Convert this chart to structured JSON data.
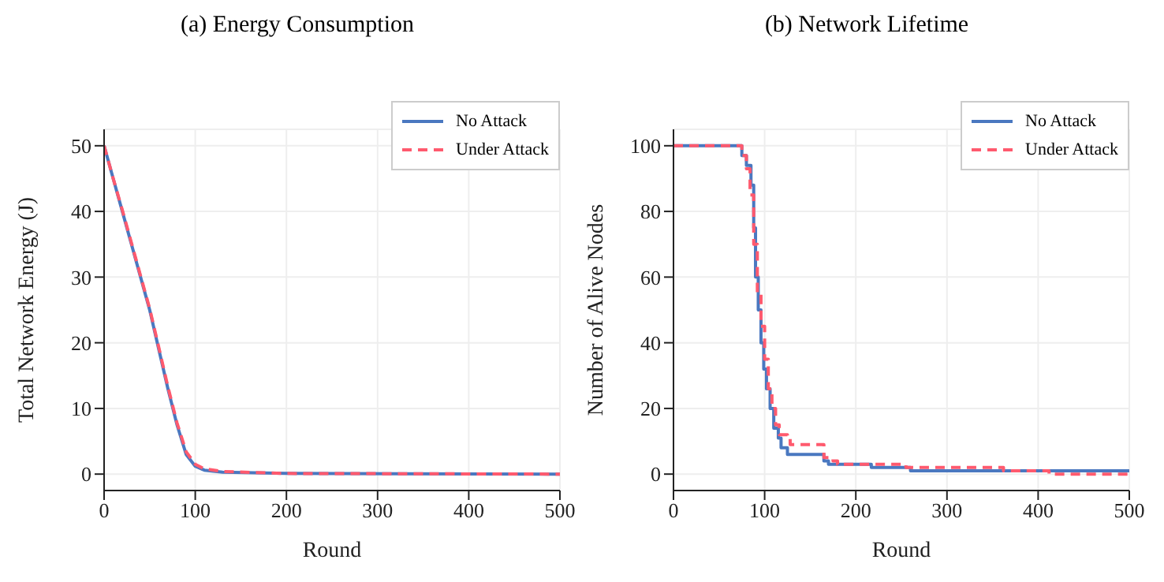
{
  "chart_data": [
    {
      "type": "line",
      "title": "(a) Energy Consumption",
      "xlabel": "Round",
      "ylabel": "Total Network Energy (J)",
      "xlim": [
        0,
        500
      ],
      "ylim": [
        -2.5,
        52.5
      ],
      "xticks": [
        0,
        100,
        200,
        300,
        400,
        500
      ],
      "yticks": [
        0,
        10,
        20,
        30,
        40,
        50
      ],
      "grid": true,
      "legend": "top right",
      "series": [
        {
          "name": "No Attack",
          "color": "#4a78c0",
          "line_style": "solid",
          "x": [
            0,
            10,
            20,
            30,
            40,
            50,
            60,
            70,
            80,
            90,
            100,
            110,
            130,
            200,
            500
          ],
          "values": [
            50,
            45,
            40,
            35,
            30,
            25,
            19,
            13,
            7.5,
            3,
            1.2,
            0.6,
            0.3,
            0.1,
            0
          ]
        },
        {
          "name": "Under Attack",
          "color": "#ff5a6e",
          "line_style": "dashed",
          "x": [
            0,
            10,
            20,
            30,
            40,
            50,
            60,
            70,
            80,
            90,
            100,
            110,
            130,
            200,
            500
          ],
          "values": [
            50,
            45,
            40.2,
            35.2,
            30.2,
            25.2,
            19.3,
            13.3,
            7.8,
            3.4,
            1.5,
            0.8,
            0.4,
            0.1,
            0
          ]
        }
      ]
    },
    {
      "type": "step",
      "title": "(b) Network Lifetime",
      "xlabel": "Round",
      "ylabel": "Number of Alive Nodes",
      "xlim": [
        0,
        500
      ],
      "ylim": [
        -5,
        105
      ],
      "xticks": [
        0,
        100,
        200,
        300,
        400,
        500
      ],
      "yticks": [
        0,
        20,
        40,
        60,
        80,
        100
      ],
      "grid": true,
      "legend": "top right",
      "series": [
        {
          "name": "No Attack",
          "color": "#4a78c0",
          "line_style": "solid",
          "x": [
            0,
            70,
            75,
            80,
            85,
            88,
            90,
            93,
            96,
            99,
            102,
            106,
            110,
            115,
            118,
            125,
            160,
            165,
            170,
            215,
            217,
            258,
            260,
            500
          ],
          "values": [
            100,
            100,
            97,
            94,
            88,
            75,
            60,
            50,
            40,
            32,
            26,
            20,
            14,
            11,
            8,
            6,
            6,
            4,
            3,
            3,
            2,
            2,
            1,
            1
          ]
        },
        {
          "name": "Under Attack",
          "color": "#ff5a6e",
          "line_style": "dashed",
          "x": [
            0,
            70,
            75,
            80,
            84,
            88,
            92,
            96,
            100,
            104,
            108,
            112,
            116,
            125,
            128,
            160,
            165,
            175,
            180,
            250,
            255,
            360,
            362,
            410,
            412,
            500
          ],
          "values": [
            100,
            100,
            97,
            93,
            85,
            70,
            55,
            45,
            35,
            26,
            20,
            15,
            12,
            11,
            9,
            9,
            5,
            4,
            3,
            3,
            2,
            2,
            1,
            1,
            0,
            0
          ]
        }
      ]
    }
  ]
}
